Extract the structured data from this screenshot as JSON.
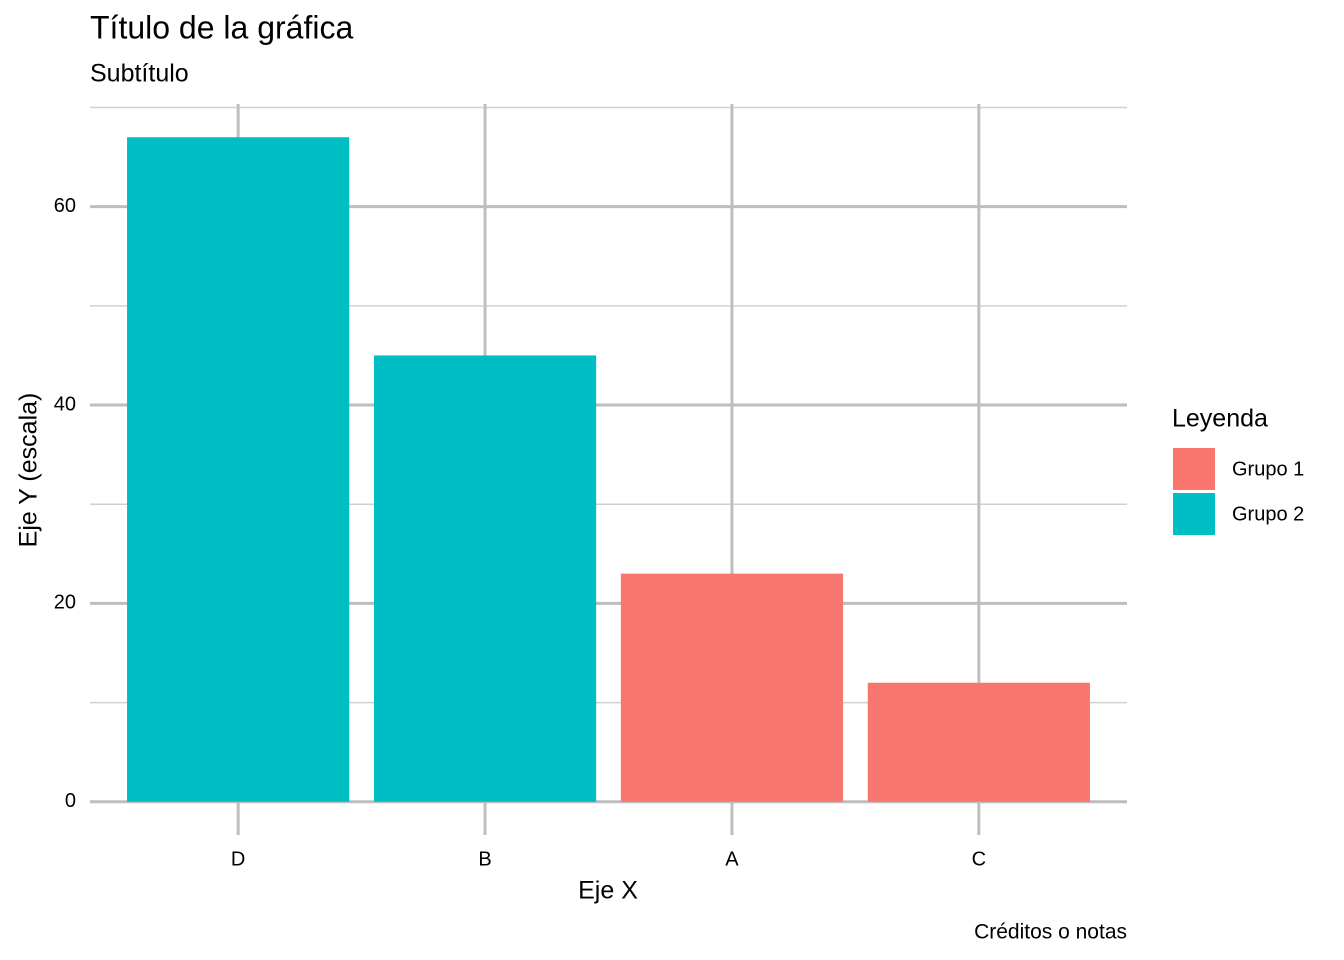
{
  "chart_data": {
    "type": "bar",
    "title": "Título de la gráfica",
    "subtitle": "Subtítulo",
    "x_label": "Eje X",
    "y_label": "Eje Y (escala)",
    "caption": "Créditos o notas",
    "legend_title": "Leyenda",
    "legend_position": "right",
    "categories": [
      "D",
      "B",
      "A",
      "C"
    ],
    "series": [
      {
        "name": "Grupo 1",
        "color": "#F8766D",
        "values": [
          null,
          null,
          23,
          12
        ]
      },
      {
        "name": "Grupo 2",
        "color": "#00BFC4",
        "values": [
          67,
          45,
          null,
          null
        ]
      }
    ],
    "ylim": [
      -3.35,
      70.35
    ],
    "yticks": [
      0,
      20,
      40,
      60
    ],
    "yminor": [
      10,
      30,
      50,
      70
    ],
    "grid": true
  }
}
